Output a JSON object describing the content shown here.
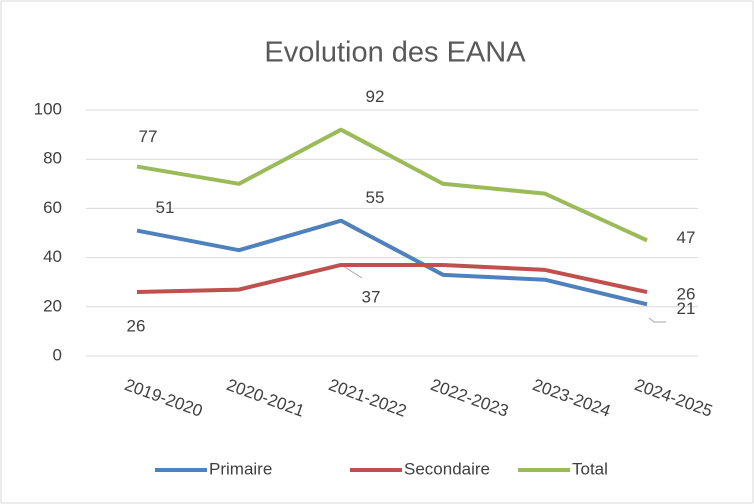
{
  "chart_data": {
    "type": "line",
    "title": "Evolution des EANA",
    "categories": [
      "2019-2020",
      "2020-2021",
      "2021-2022",
      "2022-2023",
      "2023-2024",
      "2024-2025"
    ],
    "series": [
      {
        "name": "Primaire",
        "color": "#4f81bd",
        "values": [
          51,
          43,
          55,
          33,
          31,
          21
        ]
      },
      {
        "name": "Secondaire",
        "color": "#c0504d",
        "values": [
          26,
          27,
          37,
          37,
          35,
          26
        ]
      },
      {
        "name": "Total",
        "color": "#9bbb59",
        "values": [
          77,
          70,
          92,
          70,
          66,
          47
        ]
      }
    ],
    "data_labels": [
      0,
      2,
      5
    ],
    "ylim": [
      0,
      100
    ],
    "yticks": [
      0,
      20,
      40,
      60,
      80,
      100
    ],
    "grid": true,
    "legend": "bottom"
  }
}
